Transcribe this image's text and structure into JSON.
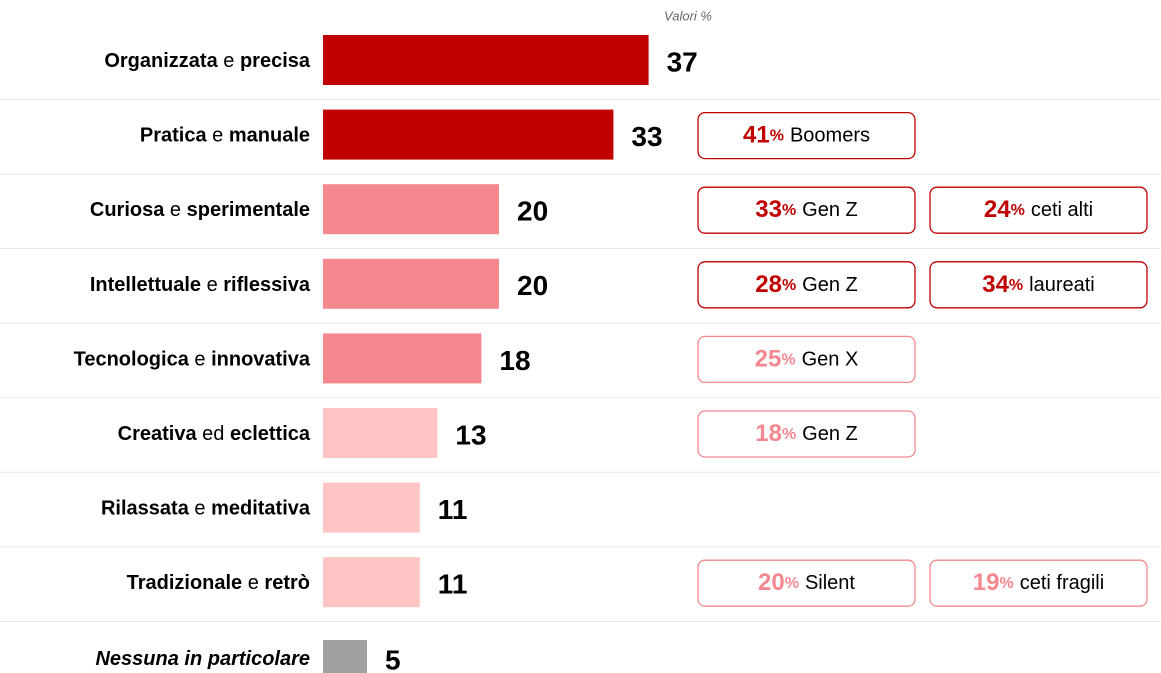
{
  "chart_data": {
    "type": "bar",
    "title": "Valori %",
    "categories": [
      "Organizzata e precisa",
      "Pratica e manuale",
      "Curiosa e sperimentale",
      "Intellettuale e riflessiva",
      "Tecnologica e innovativa",
      "Creativa ed eclettica",
      "Rilassata e meditativa",
      "Tradizionale e retrò",
      "Nessuna in particolare"
    ],
    "values": [
      37,
      33,
      20,
      20,
      18,
      13,
      11,
      11,
      5
    ],
    "colors": [
      "#c00000",
      "#c00000",
      "#f4888e",
      "#f4888e",
      "#f4888e",
      "#ffc4c4",
      "#ffc4c4",
      "#ffc4c4",
      "#a0a0a0"
    ],
    "badges": [
      [],
      [
        {
          "value": 41,
          "unit": "%",
          "label": "Boomers",
          "color": "#c00000"
        }
      ],
      [
        {
          "value": 33,
          "unit": "%",
          "label": "Gen Z",
          "color": "#c00000"
        },
        {
          "value": 24,
          "unit": "%",
          "label": "ceti alti",
          "color": "#c00000"
        }
      ],
      [
        {
          "value": 28,
          "unit": "%",
          "label": "Gen Z",
          "color": "#c00000"
        },
        {
          "value": 34,
          "unit": "%",
          "label": "laureati",
          "color": "#c00000"
        }
      ],
      [
        {
          "value": 25,
          "unit": "%",
          "label": "Gen X",
          "color": "#f4888e"
        }
      ],
      [
        {
          "value": 18,
          "unit": "%",
          "label": "Gen Z",
          "color": "#f4888e"
        }
      ],
      [],
      [
        {
          "value": 20,
          "unit": "%",
          "label": "Silent",
          "color": "#f4888e"
        },
        {
          "value": 19,
          "unit": "%",
          "label": "ceti fragili",
          "color": "#f4888e"
        }
      ],
      []
    ]
  }
}
